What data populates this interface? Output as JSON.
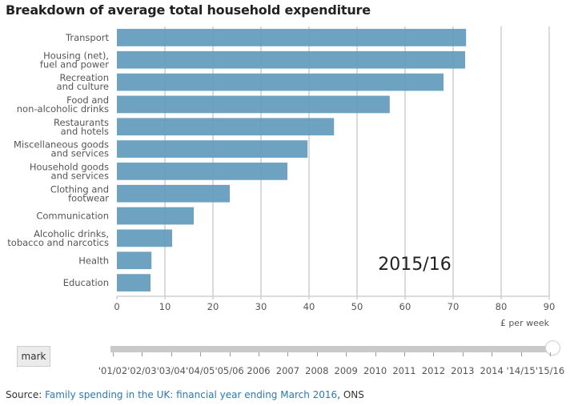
{
  "chart_data": {
    "type": "bar",
    "orientation": "horizontal",
    "title": "Breakdown of average total household expenditure",
    "categories": [
      "Transport",
      "Housing (net),\nfuel and power",
      "Recreation\nand culture",
      "Food and\nnon-alcoholic drinks",
      "Restaurants\nand hotels",
      "Miscellaneous goods\nand services",
      "Household goods\nand services",
      "Clothing and\nfootwear",
      "Communication",
      "Alcoholic drinks,\ntobacco and narcotics",
      "Health",
      "Education"
    ],
    "values": [
      72.7,
      72.5,
      68.0,
      56.8,
      45.2,
      39.7,
      35.5,
      23.5,
      16.0,
      11.5,
      7.2,
      7.0
    ],
    "xlabel": "£ per week",
    "ylabel": "",
    "xlim": [
      0,
      90
    ],
    "xticks": [
      0,
      10,
      20,
      30,
      40,
      50,
      60,
      70,
      80,
      90
    ],
    "grid": true,
    "annotation": "2015/16",
    "bar_color": "#659dbd"
  },
  "controls": {
    "mark_label": "mark",
    "slider_years": [
      "'01/02",
      "'02/03",
      "'03/04",
      "'04/05",
      "'05/06",
      "2006",
      "2007",
      "2008",
      "2009",
      "2010",
      "2011",
      "2012",
      "2013",
      "2014",
      "'14/15",
      "'15/16"
    ],
    "selected_year": "'15/16"
  },
  "source": {
    "prefix": "Source: ",
    "link_text": "Family spending in the UK: financial year ending March 2016",
    "suffix": ", ONS"
  }
}
